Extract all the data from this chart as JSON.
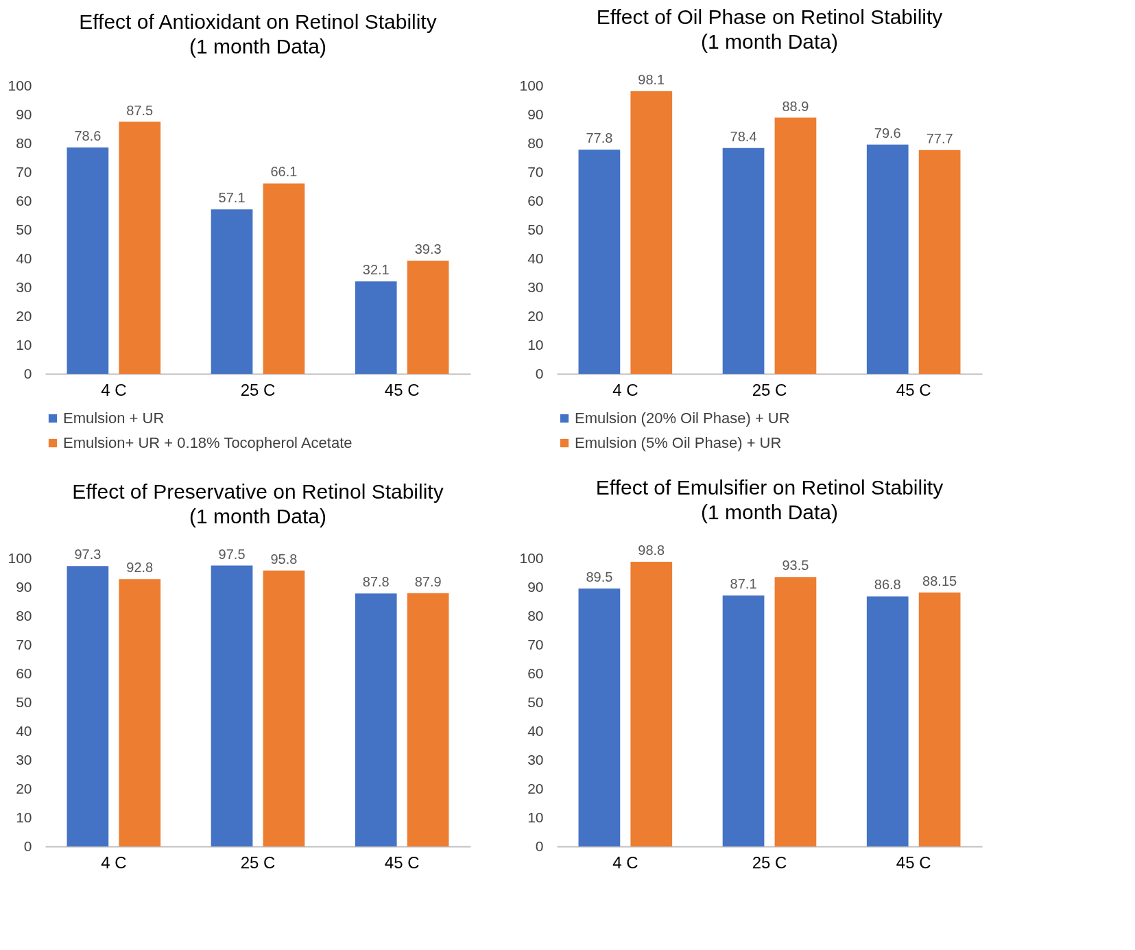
{
  "chart_data": [
    {
      "type": "bar",
      "title": "Effect of Antioxidant on Retinol Stability",
      "subtitle": "(1 month Data)",
      "categories": [
        "4 C",
        "25 C",
        "45 C"
      ],
      "series": [
        {
          "name": "Emulsion + UR",
          "color": "#4472c4",
          "values": [
            78.6,
            57.1,
            32.1
          ]
        },
        {
          "name": "Emulsion+ UR + 0.18% Tocopherol Acetate",
          "color": "#ed7d31",
          "values": [
            87.5,
            66.1,
            39.3
          ]
        }
      ],
      "ylim": [
        0,
        100
      ],
      "yticks": [
        0,
        10,
        20,
        30,
        40,
        50,
        60,
        70,
        80,
        90,
        100
      ],
      "grid": false,
      "legend": "bottom",
      "data_labels": true
    },
    {
      "type": "bar",
      "title": "Effect of Oil Phase on Retinol Stability",
      "subtitle": "(1 month Data)",
      "categories": [
        "4 C",
        "25 C",
        "45 C"
      ],
      "series": [
        {
          "name": "Emulsion (20% Oil Phase) + UR",
          "color": "#4472c4",
          "values": [
            77.8,
            78.4,
            79.6
          ]
        },
        {
          "name": "Emulsion (5% Oil Phase) + UR",
          "color": "#ed7d31",
          "values": [
            98.1,
            88.9,
            77.7
          ]
        }
      ],
      "ylim": [
        0,
        100
      ],
      "yticks": [
        0,
        10,
        20,
        30,
        40,
        50,
        60,
        70,
        80,
        90,
        100
      ],
      "grid": false,
      "legend": "bottom",
      "data_labels": true
    },
    {
      "type": "bar",
      "title": "Effect of Preservative on Retinol Stability",
      "subtitle": "(1 month Data)",
      "categories": [
        "4 C",
        "25 C",
        "45 C"
      ],
      "series": [
        {
          "color": "#4472c4",
          "values": [
            97.3,
            97.5,
            87.8
          ]
        },
        {
          "color": "#ed7d31",
          "values": [
            92.8,
            95.8,
            87.9
          ]
        }
      ],
      "ylim": [
        0,
        100
      ],
      "yticks": [
        0,
        10,
        20,
        30,
        40,
        50,
        60,
        70,
        80,
        90,
        100
      ],
      "grid": false,
      "data_labels": true
    },
    {
      "type": "bar",
      "title": "Effect of Emulsifier on Retinol Stability",
      "subtitle": "(1 month Data)",
      "categories": [
        "4 C",
        "25 C",
        "45 C"
      ],
      "series": [
        {
          "color": "#4472c4",
          "values": [
            89.5,
            87.1,
            86.8
          ]
        },
        {
          "color": "#ed7d31",
          "values": [
            98.8,
            93.5,
            88.15
          ]
        }
      ],
      "ylim": [
        0,
        100
      ],
      "yticks": [
        0,
        10,
        20,
        30,
        40,
        50,
        60,
        70,
        80,
        90,
        100
      ],
      "grid": false,
      "data_labels": true
    }
  ]
}
